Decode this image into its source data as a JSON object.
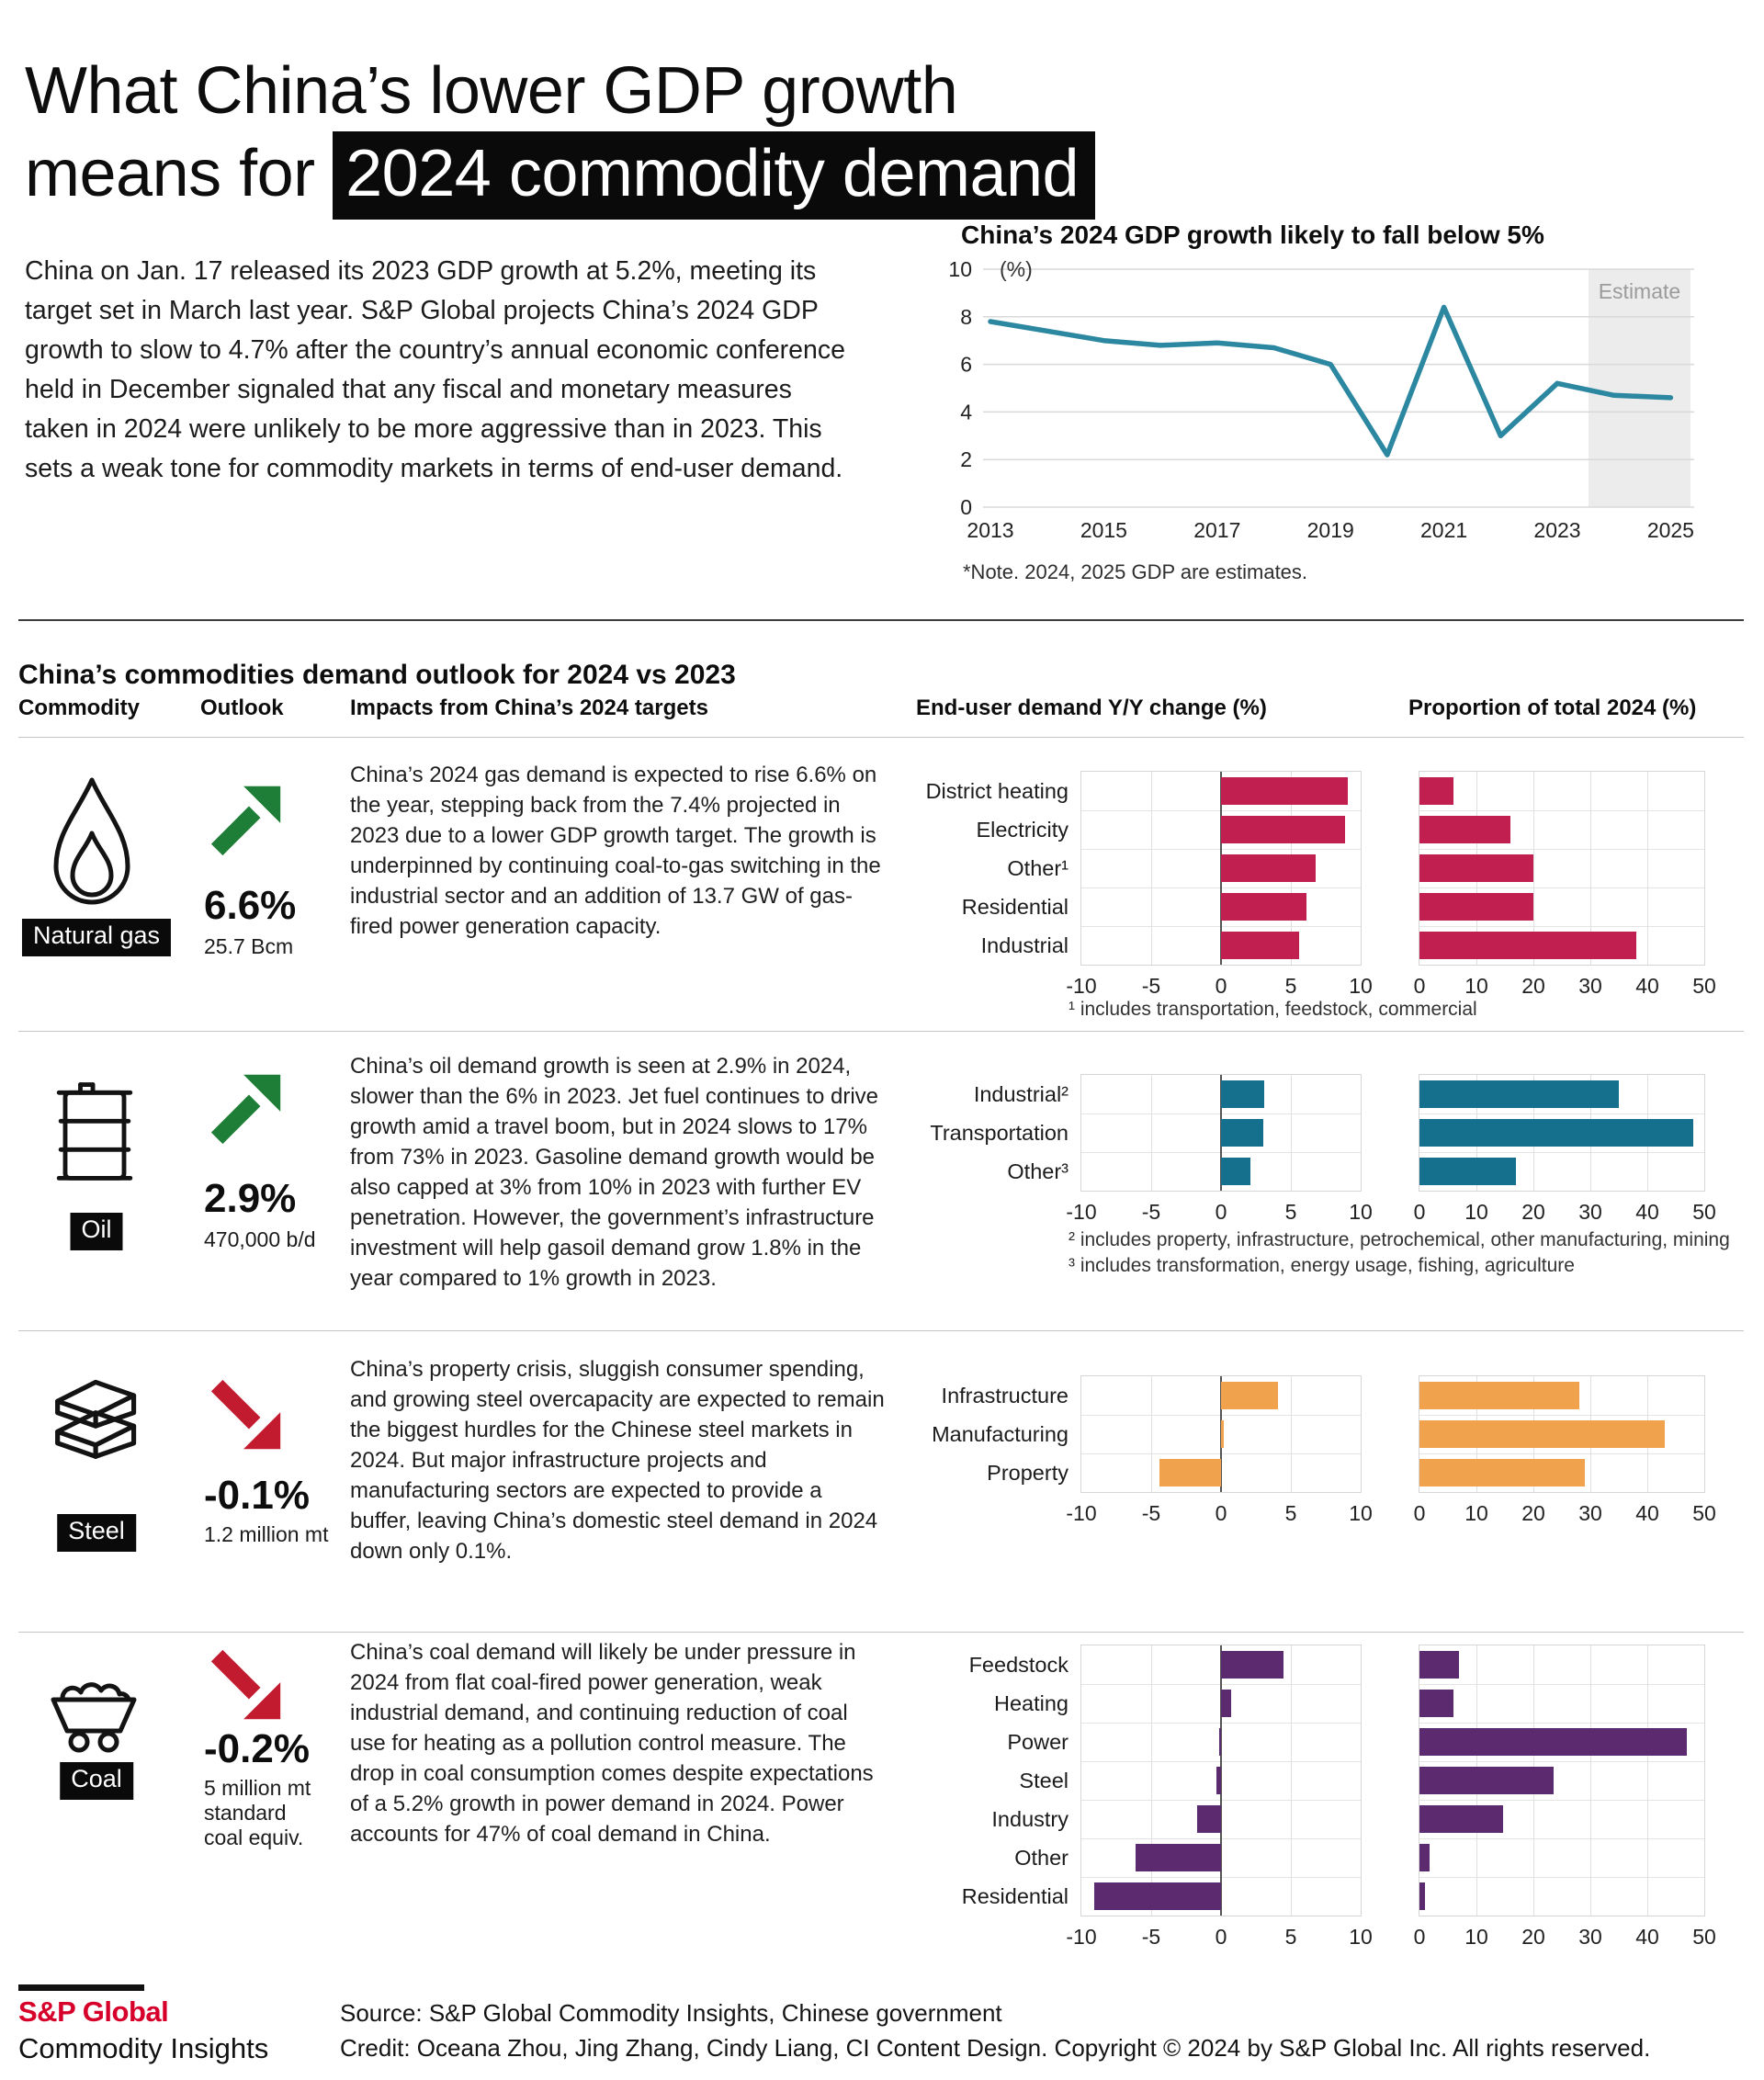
{
  "header": {
    "title_line1": "What China’s lower GDP growth",
    "title_line2_prefix": "means for ",
    "title_line2_highlight": "2024 commodity demand",
    "intro": "China on Jan. 17 released its 2023 GDP growth at 5.2%, meeting its target set in March last year. S&P Global projects China’s 2024 GDP growth to slow to 4.7% after the country’s annual economic conference held in December signaled that any fiscal and monetary measures taken in 2024 were unlikely to be more aggressive than in 2023. This sets a weak tone for commodity markets in terms of end-user demand."
  },
  "section": {
    "title": "China’s commodities demand outlook for 2024 vs 2023",
    "columns": [
      "Commodity",
      "Outlook",
      "Impacts from China’s 2024 targets",
      "End-user demand Y/Y change (%)",
      "Proportion of total 2024 (%)"
    ]
  },
  "colors": {
    "brand_red": "#d6002a",
    "trend_up": "#1e7d36",
    "trend_down": "#c21b30",
    "natural_gas": "#c01f4f",
    "oil": "#14708c",
    "steel": "#f0a24c",
    "coal": "#5c2a6e",
    "gdp_line": "#2c87a0"
  },
  "chart_data": [
    {
      "id": "gdp",
      "type": "line",
      "title": "China’s 2024 GDP growth likely to fall below 5%",
      "unit": "(%)",
      "x": [
        2013,
        2014,
        2015,
        2016,
        2017,
        2018,
        2019,
        2020,
        2021,
        2022,
        2023,
        2024,
        2025
      ],
      "y": [
        7.8,
        7.4,
        7.0,
        6.8,
        6.9,
        6.7,
        6.0,
        2.2,
        8.4,
        3.0,
        5.2,
        4.7,
        4.6
      ],
      "xticks": [
        2013,
        2015,
        2017,
        2019,
        2021,
        2023,
        2025
      ],
      "yticks": [
        0,
        2,
        4,
        6,
        8,
        10
      ],
      "ylim": [
        0,
        10
      ],
      "estimate_span": [
        2023.55,
        2025.35
      ],
      "estimate_label": "Estimate",
      "note": "*Note. 2024, 2025 GDP are estimates.",
      "color": "#2c87a0"
    },
    {
      "id": "gas-yoy",
      "type": "bar",
      "title": "Natural gas — End-user demand Y/Y change (%)",
      "categories": [
        "District heating",
        "Electricity",
        "Other¹",
        "Residential",
        "Industrial"
      ],
      "values": [
        9.1,
        8.9,
        6.8,
        6.1,
        5.6
      ],
      "xlim": [
        -10,
        10
      ],
      "xticks": [
        -10,
        -5,
        0,
        5,
        10
      ],
      "color": "#c01f4f"
    },
    {
      "id": "gas-share",
      "type": "bar",
      "title": "Natural gas — Proportion of total 2024 (%)",
      "categories": [
        "District heating",
        "Electricity",
        "Other¹",
        "Residential",
        "Industrial"
      ],
      "values": [
        6,
        16,
        20,
        20,
        38
      ],
      "xlim": [
        0,
        50
      ],
      "xticks": [
        0,
        10,
        20,
        30,
        40,
        50
      ],
      "color": "#c01f4f"
    },
    {
      "id": "oil-yoy",
      "type": "bar",
      "title": "Oil — End-user demand Y/Y change (%)",
      "categories": [
        "Industrial²",
        "Transportation",
        "Other³"
      ],
      "values": [
        3.1,
        3.0,
        2.1
      ],
      "xlim": [
        -10,
        10
      ],
      "xticks": [
        -10,
        -5,
        0,
        5,
        10
      ],
      "color": "#14708c"
    },
    {
      "id": "oil-share",
      "type": "bar",
      "title": "Oil — Proportion of total 2024 (%)",
      "categories": [
        "Industrial²",
        "Transportation",
        "Other³"
      ],
      "values": [
        35,
        48,
        17
      ],
      "xlim": [
        0,
        50
      ],
      "xticks": [
        0,
        10,
        20,
        30,
        40,
        50
      ],
      "color": "#14708c"
    },
    {
      "id": "steel-yoy",
      "type": "bar",
      "title": "Steel — End-user demand Y/Y change (%)",
      "categories": [
        "Infrastructure",
        "Manufacturing",
        "Property"
      ],
      "values": [
        4.1,
        0.2,
        -4.4
      ],
      "xlim": [
        -10,
        10
      ],
      "xticks": [
        -10,
        -5,
        0,
        5,
        10
      ],
      "color": "#f0a24c"
    },
    {
      "id": "steel-share",
      "type": "bar",
      "title": "Steel — Proportion of total 2024 (%)",
      "categories": [
        "Infrastructure",
        "Manufacturing",
        "Property"
      ],
      "values": [
        28,
        43,
        29
      ],
      "xlim": [
        0,
        50
      ],
      "xticks": [
        0,
        10,
        20,
        30,
        40,
        50
      ],
      "color": "#f0a24c"
    },
    {
      "id": "coal-yoy",
      "type": "bar",
      "title": "Coal — End-user demand Y/Y change (%)",
      "categories": [
        "Feedstock",
        "Heating",
        "Power",
        "Steel",
        "Industry",
        "Other",
        "Residential"
      ],
      "values": [
        4.5,
        0.7,
        -0.1,
        -0.3,
        -1.7,
        -6.1,
        -9.1
      ],
      "xlim": [
        -10,
        10
      ],
      "xticks": [
        -10,
        -5,
        0,
        5,
        10
      ],
      "color": "#5c2a6e"
    },
    {
      "id": "coal-share",
      "type": "bar",
      "title": "Coal — Proportion of total 2024 (%)",
      "categories": [
        "Feedstock",
        "Heating",
        "Power",
        "Steel",
        "Industry",
        "Other",
        "Residential"
      ],
      "values": [
        7,
        6,
        47,
        23.5,
        14.6,
        1.8,
        0.9
      ],
      "xlim": [
        0,
        50
      ],
      "xticks": [
        0,
        10,
        20,
        30,
        40,
        50
      ],
      "color": "#5c2a6e"
    }
  ],
  "rows": [
    {
      "commodity": "Natural gas",
      "icon": "flame-icon",
      "direction": "up",
      "pct": "6.6%",
      "unit": "25.7 Bcm",
      "impact": "China’s 2024 gas demand is expected to rise 6.6% on the year, stepping back from the 7.4% projected in 2023 due to a lower GDP growth target. The growth is underpinned by continuing coal-to-gas switching in the industrial sector and an addition of 13.7 GW of gas-fired power generation capacity.",
      "footnotes": [
        "¹ includes transportation, feedstock, commercial"
      ]
    },
    {
      "commodity": "Oil",
      "icon": "oil-barrel-icon",
      "direction": "up",
      "pct": "2.9%",
      "unit": "470,000 b/d",
      "impact": "China’s oil demand growth is seen at 2.9% in 2024, slower than the 6% in 2023. Jet fuel continues to drive growth amid a travel boom, but in 2024 slows to 17% from 73% in 2023. Gasoline demand growth would be also capped at 3% from 10% in 2023 with further EV penetration. However, the government’s infrastructure investment will help gasoil demand grow 1.8% in the year compared to 1% growth in 2023.",
      "footnotes": [
        "² includes property, infrastructure, petrochemical, other manufacturing, mining",
        "³ includes transformation, energy usage, fishing, agriculture"
      ]
    },
    {
      "commodity": "Steel",
      "icon": "steel-beams-icon",
      "direction": "down",
      "pct": "-0.1%",
      "unit": "1.2 million mt",
      "impact": "China’s property crisis, sluggish consumer spending, and growing steel overcapacity are expected to remain the biggest hurdles for the Chinese steel markets in 2024. But major infrastructure projects and manufacturing sectors are expected to provide a buffer, leaving China’s domestic steel demand in 2024 down only 0.1%.",
      "footnotes": []
    },
    {
      "commodity": "Coal",
      "icon": "coal-cart-icon",
      "direction": "down",
      "pct": "-0.2%",
      "unit": "5 million mt standard coal equiv.",
      "impact": "China’s coal demand will likely be under pressure in 2024 from flat coal-fired power generation, weak industrial demand, and continuing reduction of coal use for heating as a pollution control measure. The drop in coal consumption comes despite expectations of a 5.2% growth in power demand in 2024. Power accounts for 47% of coal demand in China.",
      "footnotes": []
    }
  ],
  "footer": {
    "logo_line1": "S&P Global",
    "logo_line2": "Commodity Insights",
    "source": "Source: S&P Global Commodity Insights, Chinese government",
    "credit": "Credit: Oceana Zhou, Jing Zhang, Cindy Liang, CI Content Design.  Copyright © 2024 by S&P Global Inc.  All rights reserved."
  }
}
